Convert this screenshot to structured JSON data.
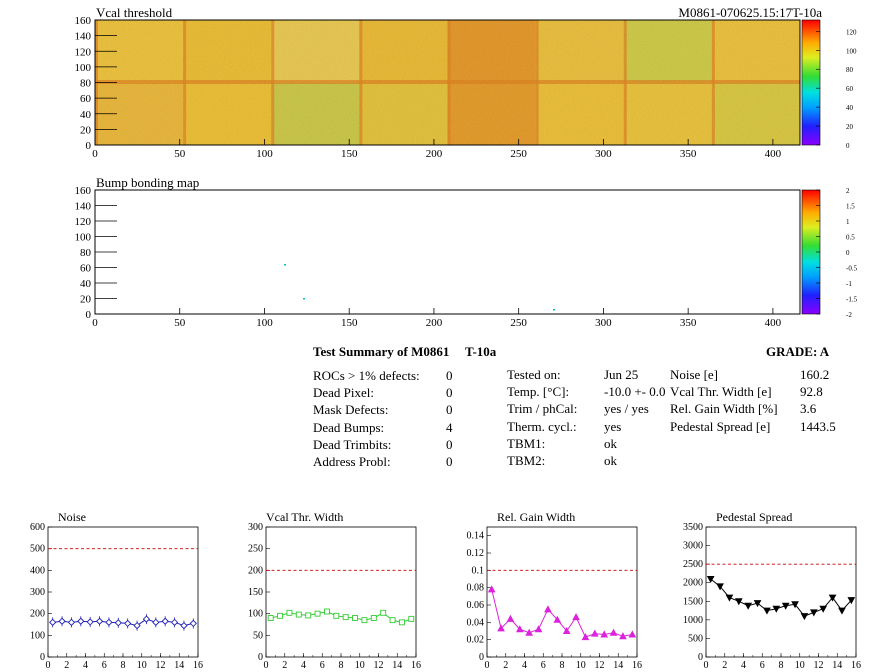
{
  "top": {
    "title": "Vcal threshold",
    "module_id": "M0861-070625.15:17T-10a",
    "x_ticks": [
      "0",
      "50",
      "100",
      "150",
      "200",
      "250",
      "300",
      "350",
      "400"
    ],
    "y_ticks": [
      "0",
      "20",
      "40",
      "60",
      "80",
      "100",
      "120",
      "140",
      "160"
    ],
    "palette_ticks": [
      "0",
      "20",
      "40",
      "60",
      "80",
      "100",
      "120"
    ]
  },
  "bump": {
    "title": "Bump bonding map",
    "x_ticks": [
      "0",
      "50",
      "100",
      "150",
      "200",
      "250",
      "300",
      "350",
      "400"
    ],
    "y_ticks": [
      "0",
      "20",
      "40",
      "60",
      "80",
      "100",
      "120",
      "140",
      "160"
    ],
    "palette_ticks": [
      "-2",
      "-1.5",
      "-1",
      "-0.5",
      "0",
      "0.5",
      "1",
      "1.5",
      "2"
    ]
  },
  "summary": {
    "heading": "Test Summary of M0861",
    "temp_code": "T-10a",
    "grade": "GRADE:  A",
    "col1": [
      {
        "label": "ROCs > 1% defects:",
        "value": "0"
      },
      {
        "label": "Dead Pixel:",
        "value": "0"
      },
      {
        "label": "Mask Defects:",
        "value": "0"
      },
      {
        "label": "Dead Bumps:",
        "value": "4"
      },
      {
        "label": "Dead Trimbits:",
        "value": "0"
      },
      {
        "label": "Address Probl:",
        "value": "0"
      }
    ],
    "col2": [
      {
        "label": "Tested on:",
        "value": "Jun 25"
      },
      {
        "label": "Temp. [°C]:",
        "value": "-10.0 +- 0.0"
      },
      {
        "label": "Trim / phCal:",
        "value": "yes / yes"
      },
      {
        "label": "Therm. cycl.:",
        "value": "yes"
      },
      {
        "label": "TBM1:",
        "value": "ok"
      },
      {
        "label": "TBM2:",
        "value": "ok"
      }
    ],
    "col3": [
      {
        "label": "Noise [e]",
        "value": "160.2"
      },
      {
        "label": "Vcal Thr. Width [e]",
        "value": "92.8"
      },
      {
        "label": "Rel. Gain Width [%]",
        "value": "3.6"
      },
      {
        "label": "Pedestal Spread [e]",
        "value": "1443.5"
      }
    ]
  },
  "colors": {
    "noise": "#1f1fb4",
    "vcal": "#33cc33",
    "gain": "#dd22dd",
    "pedestal": "#000000",
    "limit": "#cc0000"
  },
  "chart_data": [
    {
      "type": "line",
      "title": "Noise",
      "marker": "diamond",
      "x": [
        0.5,
        1.5,
        2.5,
        3.5,
        4.5,
        5.5,
        6.5,
        7.5,
        8.5,
        9.5,
        10.5,
        11.5,
        12.5,
        13.5,
        14.5,
        15.5
      ],
      "values": [
        160,
        165,
        160,
        165,
        162,
        165,
        160,
        158,
        155,
        145,
        175,
        160,
        165,
        160,
        145,
        155
      ],
      "limit": 500,
      "xlim": [
        0,
        16
      ],
      "ylim": [
        0,
        600
      ],
      "x_ticks": [
        "0",
        "2",
        "4",
        "6",
        "8",
        "10",
        "12",
        "14",
        "16"
      ],
      "y_ticks": [
        "0",
        "100",
        "200",
        "300",
        "400",
        "500",
        "600"
      ]
    },
    {
      "type": "line",
      "title": "Vcal Thr. Width",
      "marker": "square",
      "x": [
        0.5,
        1.5,
        2.5,
        3.5,
        4.5,
        5.5,
        6.5,
        7.5,
        8.5,
        9.5,
        10.5,
        11.5,
        12.5,
        13.5,
        14.5,
        15.5
      ],
      "values": [
        90,
        95,
        102,
        98,
        96,
        100,
        105,
        95,
        92,
        90,
        85,
        90,
        102,
        85,
        80,
        88
      ],
      "limit": 200,
      "xlim": [
        0,
        16
      ],
      "ylim": [
        0,
        300
      ],
      "x_ticks": [
        "0",
        "2",
        "4",
        "6",
        "8",
        "10",
        "12",
        "14",
        "16"
      ],
      "y_ticks": [
        "0",
        "50",
        "100",
        "150",
        "200",
        "250",
        "300"
      ]
    },
    {
      "type": "line",
      "title": "Rel. Gain Width",
      "marker": "triangle",
      "x": [
        0.5,
        1.5,
        2.5,
        3.5,
        4.5,
        5.5,
        6.5,
        7.5,
        8.5,
        9.5,
        10.5,
        11.5,
        12.5,
        13.5,
        14.5,
        15.5
      ],
      "values": [
        0.078,
        0.033,
        0.044,
        0.032,
        0.028,
        0.032,
        0.055,
        0.043,
        0.03,
        0.046,
        0.023,
        0.027,
        0.026,
        0.028,
        0.024,
        0.026
      ],
      "limit": 0.1,
      "xlim": [
        0,
        16
      ],
      "ylim": [
        0,
        0.15
      ],
      "x_ticks": [
        "0",
        "2",
        "4",
        "6",
        "8",
        "10",
        "12",
        "14",
        "16"
      ],
      "y_ticks": [
        "0",
        "0.02",
        "0.04",
        "0.06",
        "0.08",
        "0.1",
        "0.12",
        "0.14"
      ]
    },
    {
      "type": "line",
      "title": "Pedestal Spread",
      "marker": "down-triangle",
      "x": [
        0.5,
        1.5,
        2.5,
        3.5,
        4.5,
        5.5,
        6.5,
        7.5,
        8.5,
        9.5,
        10.5,
        11.5,
        12.5,
        13.5,
        14.5,
        15.5
      ],
      "values": [
        2100,
        1900,
        1600,
        1500,
        1380,
        1450,
        1250,
        1300,
        1380,
        1420,
        1100,
        1200,
        1300,
        1600,
        1250,
        1530
      ],
      "limit": 2500,
      "xlim": [
        0,
        16
      ],
      "ylim": [
        0,
        3500
      ],
      "x_ticks": [
        "0",
        "2",
        "4",
        "6",
        "8",
        "10",
        "12",
        "14",
        "16"
      ],
      "y_ticks": [
        "0",
        "500",
        "1000",
        "1500",
        "2000",
        "2500",
        "3000",
        "3500"
      ]
    }
  ]
}
